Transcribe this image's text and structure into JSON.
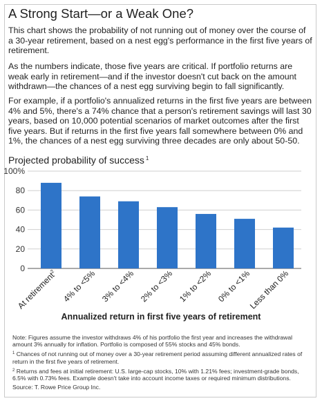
{
  "header": {
    "title": "A Strong Start—or a Weak One?"
  },
  "paragraphs": [
    "This chart shows the probability of not running out of money over the course of a 30-year retirement, based on a nest egg's performance in the first five years of retirement.",
    "As the numbers indicate, those five years are critical. If portfolio returns are weak early in retirement—and if the investor doesn't cut back on the amount withdrawn—the chances of a nest egg surviving begin to fall significantly.",
    "For example, if a portfolio's annualized returns in the first five years are between 4% and 5%, there's a 74% chance that a person's retirement savings will last 30 years, based on 10,000 potential scenarios of market outcomes after the first five years. But if returns in the first five years fall somewhere between 0% and 1%, the chances of a nest egg surviving three decades are only about 50-50."
  ],
  "chart_data": {
    "type": "bar",
    "title": "Projected probability of success",
    "title_footnote": "1",
    "xlabel": "Annualized return in first five years of retirement",
    "ylabel": "",
    "categories": [
      "At retirement",
      "4% to <5%",
      "3% to <4%",
      "2% to <3%",
      "1% to <2%",
      "0% to <1%",
      "Less than 0%"
    ],
    "category_footnotes": [
      "2",
      "",
      "",
      "",
      "",
      "",
      ""
    ],
    "values": [
      88,
      74,
      69,
      63,
      56,
      51,
      42
    ],
    "ylim": [
      0,
      100
    ],
    "yticks": [
      "0",
      "20",
      "40",
      "60",
      "80",
      "100%"
    ],
    "grid": true,
    "bar_color": "#2e74c8",
    "grid_color": "#cfcfcf"
  },
  "notes": {
    "note": "Note: Figures assume the investor withdraws 4% of his portfolio the first year and increases the withdrawal amount 3% annually for inflation. Portfolio is composed of 55% stocks and 45% bonds.",
    "fn1_mark": "1",
    "fn1": "Chances of not running out of money over a 30-year retirement period assuming different annualized rates of return in the first five years of retirement.",
    "fn2_mark": "2",
    "fn2": "Returns and fees at initial retirement: U.S. large-cap stocks, 10% with 1.21% fees; investment-grade bonds, 6.5% with 0.73% fees. Example doesn't take into account income taxes or required minimum distributions.",
    "source": "Source: T. Rowe Price Group Inc."
  }
}
